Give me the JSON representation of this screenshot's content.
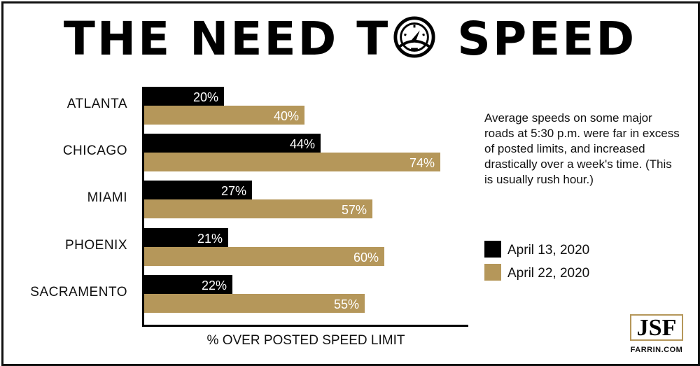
{
  "title": {
    "part1": "THE NEED T",
    "part2": " SPEED",
    "icon": "speedometer-icon"
  },
  "description": "Average speeds on some major roads at 5:30 p.m. were far in excess of posted limits, and increased drastically over a week's time. (This is usually rush hour.)",
  "legend": [
    {
      "label": "April 13, 2020",
      "color": "#000000"
    },
    {
      "label": "April 22, 2020",
      "color": "#b5975a"
    }
  ],
  "brand": {
    "logo": "JSF",
    "url": "FARRIN.COM"
  },
  "chart_data": {
    "type": "bar",
    "orientation": "horizontal",
    "title": "THE NEED TO SPEED",
    "xlabel": "% OVER POSTED SPEED LIMIT",
    "ylabel": "",
    "categories": [
      "ATLANTA",
      "CHICAGO",
      "MIAMI",
      "PHOENIX",
      "SACRAMENTO"
    ],
    "series": [
      {
        "name": "April 13, 2020",
        "color": "#000000",
        "values": [
          20,
          44,
          27,
          21,
          22
        ],
        "labels": [
          "20%",
          "44%",
          "27%",
          "21%",
          "22%"
        ]
      },
      {
        "name": "April 22, 2020",
        "color": "#b5975a",
        "values": [
          40,
          74,
          57,
          60,
          55
        ],
        "labels": [
          "40%",
          "74%",
          "57%",
          "60%",
          "55%"
        ]
      }
    ],
    "grid": false,
    "legend_position": "right",
    "data_labels": "inside-end"
  }
}
